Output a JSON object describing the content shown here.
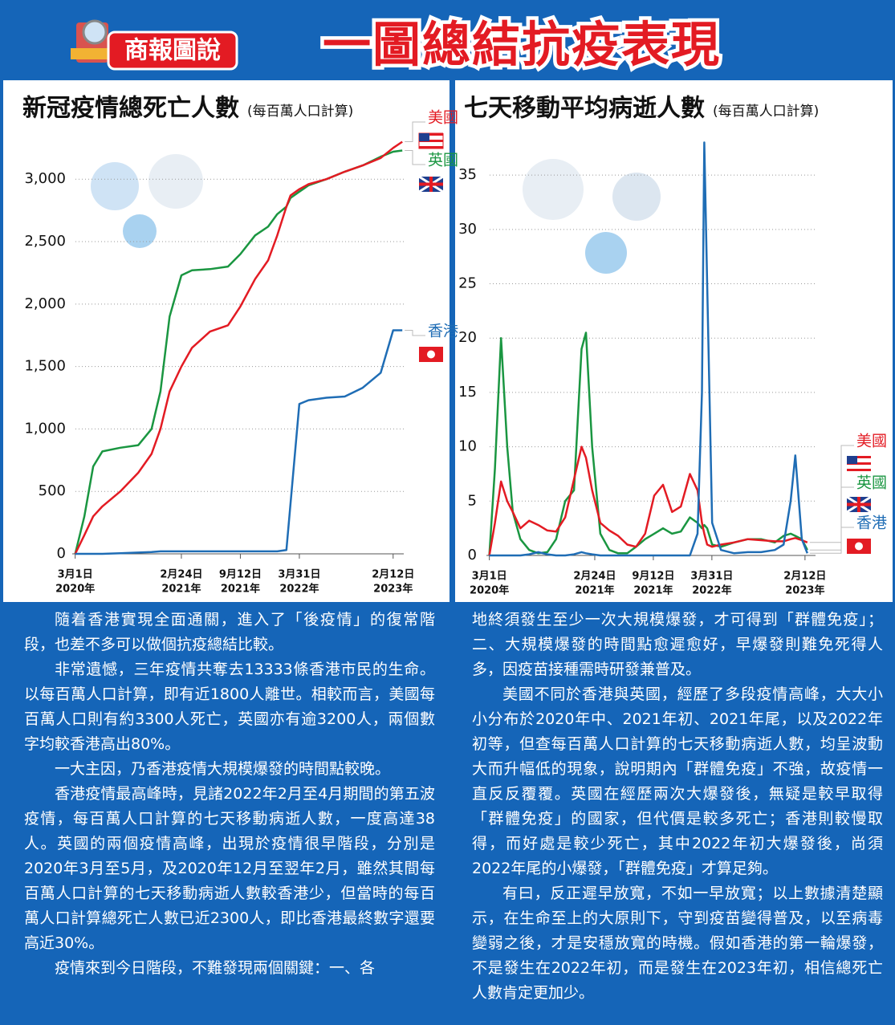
{
  "header": {
    "badge": "商報圖說",
    "title": "一圖總結抗疫表現"
  },
  "chart_data": [
    {
      "type": "line",
      "title": "新冠疫情總死亡人數",
      "subtitle": "(每百萬人口計算)",
      "x": [
        "2020-03-01",
        "2020-04-01",
        "2020-05-01",
        "2020-06-01",
        "2020-08-01",
        "2020-10-01",
        "2020-11-15",
        "2020-12-15",
        "2021-01-15",
        "2021-02-24",
        "2021-04-01",
        "2021-06-01",
        "2021-08-01",
        "2021-09-12",
        "2021-11-01",
        "2021-12-15",
        "2022-01-15",
        "2022-02-15",
        "2022-03-01",
        "2022-03-31",
        "2022-05-01",
        "2022-07-01",
        "2022-09-01",
        "2022-11-01",
        "2023-01-01",
        "2023-02-12",
        "2023-03-15"
      ],
      "series": [
        {
          "name": "英國",
          "color": "#1a9641",
          "values": [
            0,
            300,
            700,
            820,
            850,
            870,
            1000,
            1300,
            1900,
            2230,
            2270,
            2280,
            2300,
            2400,
            2550,
            2620,
            2720,
            2780,
            2850,
            2900,
            2950,
            3000,
            3060,
            3110,
            3180,
            3220,
            3230
          ]
        },
        {
          "name": "美國",
          "color": "#e31b23",
          "values": [
            0,
            150,
            300,
            380,
            500,
            650,
            800,
            1000,
            1300,
            1500,
            1650,
            1780,
            1830,
            1980,
            2200,
            2350,
            2550,
            2780,
            2870,
            2920,
            2960,
            3000,
            3060,
            3110,
            3170,
            3250,
            3300
          ]
        },
        {
          "name": "香港",
          "color": "#1f6db5",
          "values": [
            0,
            0,
            0,
            0,
            5,
            10,
            15,
            20,
            20,
            20,
            20,
            20,
            20,
            20,
            20,
            20,
            20,
            30,
            400,
            1200,
            1230,
            1250,
            1260,
            1330,
            1450,
            1790,
            1790
          ]
        }
      ],
      "xlim": [
        "2020-02-20",
        "2023-03-20"
      ],
      "xticks": [
        {
          "value": "2020-03-01",
          "label": [
            "3月1日",
            "2020年"
          ]
        },
        {
          "value": "2021-02-24",
          "label": [
            "2月24日",
            "2021年"
          ]
        },
        {
          "value": "2021-09-12",
          "label": [
            "9月12日",
            "2021年"
          ]
        },
        {
          "value": "2022-03-31",
          "label": [
            "3月31日",
            "2022年"
          ]
        },
        {
          "value": "2023-02-12",
          "label": [
            "2月12日",
            "2023年"
          ]
        }
      ],
      "ylim": [
        0,
        3400
      ],
      "yticks": [
        0,
        500,
        {
          "value": 1000,
          "label": "1,000"
        },
        {
          "value": 1500,
          "label": "1,500"
        },
        {
          "value": 2000,
          "label": "2,000"
        },
        {
          "value": 2500,
          "label": "2,500"
        },
        {
          "value": 3000,
          "label": "3,000"
        }
      ],
      "grid": true
    },
    {
      "type": "line",
      "title": "七天移動平均病逝人數",
      "subtitle": "(每百萬人口計算)",
      "x": [
        "2020-03-01",
        "2020-03-20",
        "2020-04-10",
        "2020-05-01",
        "2020-05-20",
        "2020-06-15",
        "2020-07-15",
        "2020-08-15",
        "2020-09-15",
        "2020-10-15",
        "2020-11-15",
        "2020-12-15",
        "2021-01-10",
        "2021-01-25",
        "2021-02-15",
        "2021-03-15",
        "2021-04-15",
        "2021-05-15",
        "2021-06-15",
        "2021-07-15",
        "2021-08-15",
        "2021-09-15",
        "2021-10-15",
        "2021-11-15",
        "2021-12-15",
        "2022-01-15",
        "2022-02-10",
        "2022-02-25",
        "2022-03-05",
        "2022-03-15",
        "2022-04-01",
        "2022-05-01",
        "2022-06-15",
        "2022-08-01",
        "2022-09-15",
        "2022-11-01",
        "2022-12-01",
        "2022-12-25",
        "2023-01-10",
        "2023-02-01",
        "2023-02-20"
      ],
      "series": [
        {
          "name": "英國",
          "color": "#1a9641",
          "values": [
            0,
            8,
            20,
            10,
            4,
            1.5,
            0.5,
            0.2,
            0.3,
            1.5,
            5,
            6,
            19,
            20.5,
            10,
            2,
            0.5,
            0.2,
            0.2,
            0.8,
            1.5,
            2,
            2.5,
            2,
            2.2,
            3.5,
            3,
            2.5,
            2.8,
            2.5,
            1,
            0.8,
            1.2,
            1.5,
            1.5,
            1.2,
            1.8,
            2,
            1.8,
            1.5,
            0.5
          ]
        },
        {
          "name": "美國",
          "color": "#e31b23",
          "values": [
            0,
            3,
            6.8,
            5,
            4,
            2.5,
            3.2,
            2.8,
            2.3,
            2.2,
            3.5,
            7,
            10,
            9,
            6,
            3,
            2.3,
            1.8,
            1,
            0.8,
            2,
            5.5,
            6.5,
            4,
            4.5,
            7.5,
            6,
            3,
            2,
            1,
            0.8,
            1,
            1.2,
            1.5,
            1.4,
            1.3,
            1.3,
            1.5,
            1.6,
            1.4,
            1.2
          ]
        },
        {
          "name": "香港",
          "color": "#1f6db5",
          "values": [
            0,
            0,
            0,
            0,
            0,
            0,
            0.1,
            0.3,
            0.1,
            0,
            0,
            0.1,
            0.3,
            0.2,
            0.1,
            0,
            0,
            0,
            0,
            0,
            0,
            0,
            0,
            0,
            0,
            0,
            2,
            15,
            38,
            25,
            3,
            0.5,
            0.2,
            0.3,
            0.3,
            0.5,
            1,
            5,
            9.2,
            1.5,
            0.2
          ]
        }
      ],
      "xlim": [
        "2020-02-20",
        "2023-03-20"
      ],
      "xticks": [
        {
          "value": "2020-03-01",
          "label": [
            "3月1日",
            "2020年"
          ]
        },
        {
          "value": "2021-02-24",
          "label": [
            "2月24日",
            "2021年"
          ]
        },
        {
          "value": "2021-09-12",
          "label": [
            "9月12日",
            "2021年"
          ]
        },
        {
          "value": "2022-03-31",
          "label": [
            "3月31日",
            "2022年"
          ]
        },
        {
          "value": "2023-02-12",
          "label": [
            "2月12日",
            "2023年"
          ]
        }
      ],
      "ylim": [
        0,
        39
      ],
      "yticks": [
        0,
        5,
        10,
        15,
        20,
        25,
        30,
        35
      ],
      "grid": true
    }
  ],
  "article": {
    "columns": [
      [
        "隨着香港實現全面通關，進入了「後疫情」的復常階段，也差不多可以做個抗疫總結比較。",
        "非常遺憾，三年疫情共奪去13333條香港市民的生命。以每百萬人口計算，即有近1800人離世。相較而言，美國每百萬人口則有約3300人死亡，英國亦有逾3200人，兩個數字均較香港高出80%。",
        "一大主因，乃香港疫情大規模爆發的時間點較晚。",
        "香港疫情最高峰時，見諸2022年2月至4月期間的第五波疫情，每百萬人口計算的七天移動病逝人數，一度高達38人。英國的兩個疫情高峰，出現於疫情很早階段，分別是2020年3月至5月，及2020年12月至翌年2月，雖然其間每百萬人口計算的七天移動病逝人數較香港少，但當時的每百萬人口計算總死亡人數已近2300人，即比香港最終數字還要高近30%。",
        "疫情來到今日階段，不難發現兩個關鍵：一、各"
      ],
      [
        "地終須發生至少一次大規模爆發，才可得到「群體免疫」；二、大規模爆發的時間點愈遲愈好，早爆發則難免死得人多，因疫苗接種需時研發兼普及。",
        "美國不同於香港與英國，經歷了多段疫情高峰，大大小小分布於2020年中、2021年初、2021年尾，以及2022年初等，但查每百萬人口計算的七天移動病逝人數，均呈波動大而升幅低的現象，說明期內「群體免疫」不強，故疫情一直反反覆覆。英國在經歷兩次大爆發後，無疑是較早取得「群體免疫」的國家，但代價是較多死亡；香港則較慢取得，而好處是較少死亡，其中2022年初大爆發後，尚須2022年尾的小爆發，「群體免疫」才算足夠。",
        "有曰，反正遲早放寬，不如一早放寬；以上數據清楚顯示，在生命至上的大原則下，守到疫苗變得普及，以至病毒變弱之後，才是安穩放寬的時機。假如香港的第一輪爆發，不是發生在2022年初，而是發生在2023年初，相信總死亡人數肯定更加少。"
      ]
    ]
  }
}
